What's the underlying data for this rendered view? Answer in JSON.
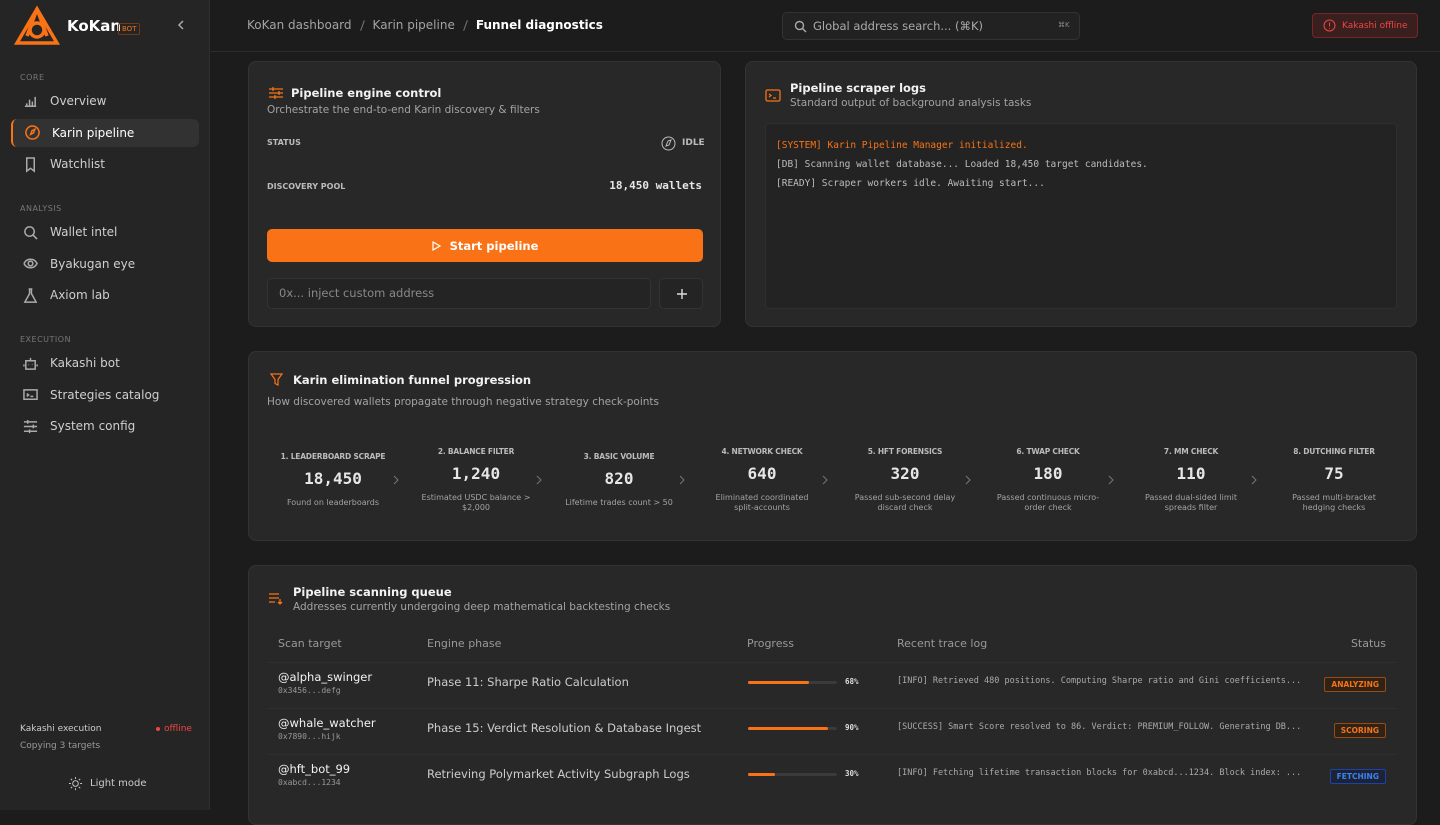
{
  "sidebar": {
    "brand": "KoKan",
    "badge": "BOT",
    "sections": [
      {
        "title": "CORE",
        "items": [
          "Overview",
          "Karin pipeline",
          "Watchlist"
        ]
      },
      {
        "title": "ANALYSIS",
        "items": [
          "Wallet intel",
          "Byakugan eye",
          "Axiom lab"
        ]
      },
      {
        "title": "EXECUTION",
        "items": [
          "Kakashi bot",
          "Strategies catalog",
          "System config"
        ]
      }
    ],
    "footer": {
      "execution_label": "Kakashi execution",
      "status": "offline",
      "copying": "Copying 3 targets",
      "theme": "Light mode"
    }
  },
  "topbar": {
    "breadcrumb": [
      "KoKan dashboard",
      "Karin pipeline",
      "Funnel diagnostics"
    ],
    "search": "Global address search... (⌘K)",
    "shortcut": "⌘K",
    "alert": "Kakashi offline"
  },
  "engine": {
    "title": "Pipeline engine control",
    "subtitle": "Orchestrate the end-to-end Karin discovery & filters",
    "status_label": "STATUS",
    "status": "IDLE",
    "pool_label": "DISCOVERY POOL",
    "pool": "18,450 wallets",
    "button": "Start pipeline",
    "input_placeholder": "0x... inject custom address"
  },
  "logs": {
    "title": "Pipeline scraper logs",
    "subtitle": "Standard output of background analysis tasks",
    "lines": [
      "[SYSTEM] Karin Pipeline Manager initialized.",
      "[DB] Scanning wallet database... Loaded 18,450 target candidates.",
      "[READY] Scraper workers idle. Awaiting start..."
    ]
  },
  "funnel": {
    "title": "Karin elimination funnel progression",
    "subtitle": "How discovered wallets propagate through negative strategy check-points",
    "stages": [
      {
        "label": "1. LEADERBOARD SCRAPE",
        "count": "18,450",
        "caption": "Found on leaderboards"
      },
      {
        "label": "2. BALANCE FILTER",
        "count": "1,240",
        "caption": "Estimated USDC balance > $2,000"
      },
      {
        "label": "3. BASIC VOLUME",
        "count": "820",
        "caption": "Lifetime trades count > 50"
      },
      {
        "label": "4. NETWORK CHECK",
        "count": "640",
        "caption": "Eliminated coordinated split-accounts"
      },
      {
        "label": "5. HFT FORENSICS",
        "count": "320",
        "caption": "Passed sub-second delay discard check"
      },
      {
        "label": "6. TWAP CHECK",
        "count": "180",
        "caption": "Passed continuous micro-order check"
      },
      {
        "label": "7. MM CHECK",
        "count": "110",
        "caption": "Passed dual-sided limit spreads filter"
      },
      {
        "label": "8. DUTCHING FILTER",
        "count": "75",
        "caption": "Passed multi-bracket hedging checks"
      }
    ]
  },
  "queue": {
    "title": "Pipeline scanning queue",
    "subtitle": "Addresses currently undergoing deep mathematical backtesting checks",
    "columns": [
      "Scan target",
      "Engine phase",
      "Progress",
      "Recent trace log",
      "Status"
    ],
    "rows": [
      {
        "handle": "@alpha_swinger",
        "address": "0x3456...defg",
        "phase": "Phase 11: Sharpe Ratio Calculation",
        "progress": 68,
        "progress_label": "68%",
        "log": "[INFO] Retrieved 480 positions. Computing Sharpe ratio and Gini coefficients...",
        "status": "ANALYZING"
      },
      {
        "handle": "@whale_watcher",
        "address": "0x7890...hijk",
        "phase": "Phase 15: Verdict Resolution & Database Ingest",
        "progress": 90,
        "progress_label": "90%",
        "log": "[SUCCESS] Smart Score resolved to 86. Verdict: PREMIUM_FOLLOW. Generating DB...",
        "status": "SCORING"
      },
      {
        "handle": "@hft_bot_99",
        "address": "0xabcd...1234",
        "phase": "Retrieving Polymarket Activity Subgraph Logs",
        "progress": 30,
        "progress_label": "30%",
        "log": "[INFO] Fetching lifetime transaction blocks for 0xabcd...1234. Block index: ...",
        "status": "FETCHING"
      }
    ]
  }
}
